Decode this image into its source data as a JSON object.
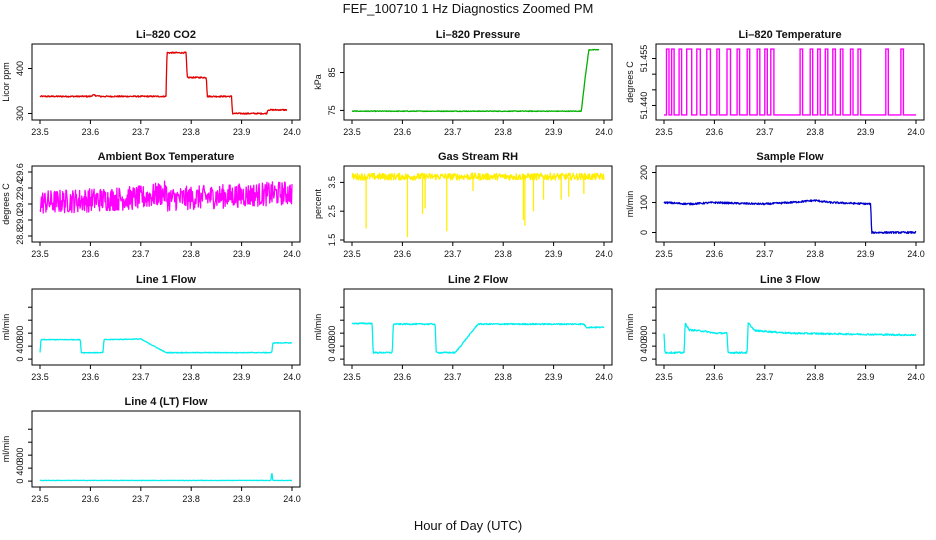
{
  "figure": {
    "title": "FEF_100710  1 Hz Diagnostics Zoomed PM",
    "xlabel": "Hour of Day (UTC)"
  },
  "chart_data": [
    {
      "type": "line",
      "title": "Li–820 CO2",
      "ylabel": "Licor ppm",
      "color": "#e00000",
      "xlim": [
        23.5,
        24.0
      ],
      "xticks": [
        "23.5",
        "23.6",
        "23.7",
        "23.8",
        "23.9",
        "24.0"
      ],
      "ylim": [
        290,
        450
      ],
      "yticks": [
        300,
        400
      ],
      "ytick_labels": [
        "300",
        "400"
      ],
      "noise": 1.5,
      "x": [
        23.5,
        23.6,
        23.605,
        23.62,
        23.75,
        23.752,
        23.79,
        23.792,
        23.83,
        23.832,
        23.88,
        23.882,
        23.95,
        23.952,
        23.99
      ],
      "y": [
        338,
        338,
        341,
        338,
        338,
        435,
        435,
        380,
        380,
        338,
        338,
        300,
        300,
        308,
        308
      ]
    },
    {
      "type": "line",
      "title": "Li–820 Pressure",
      "ylabel": "kPa",
      "color": "#00b000",
      "xlim": [
        23.5,
        24.0
      ],
      "xticks": [
        "23.5",
        "23.6",
        "23.7",
        "23.8",
        "23.9",
        "24.0"
      ],
      "ylim": [
        73,
        92
      ],
      "yticks": [
        75,
        85
      ],
      "ytick_labels": [
        "75",
        "85"
      ],
      "noise": 0.1,
      "x": [
        23.5,
        23.94,
        23.955,
        23.962,
        23.97,
        23.99
      ],
      "y": [
        74.8,
        74.8,
        74.8,
        83,
        91,
        91
      ]
    },
    {
      "type": "line",
      "title": "Li–820 Temperature",
      "ylabel": "degrees C",
      "color": "#ff00ff",
      "xlim": [
        23.5,
        24.0
      ],
      "xticks": [
        "23.5",
        "23.6",
        "23.7",
        "23.8",
        "23.9",
        "24.0"
      ],
      "ylim": [
        51.436,
        51.459
      ],
      "yticks": [
        51.44,
        51.445,
        51.45,
        51.455
      ],
      "ytick_labels": [
        "51.440",
        "",
        "",
        "51.455"
      ],
      "style": "toggle",
      "low": 51.437,
      "high": 51.458,
      "x": [
        23.505,
        23.51,
        23.515,
        23.52,
        23.53,
        23.535,
        23.545,
        23.555,
        23.565,
        23.572,
        23.585,
        23.592,
        23.605,
        23.61,
        23.625,
        23.632,
        23.645,
        23.65,
        23.665,
        23.67,
        23.685,
        23.69,
        23.7,
        23.705,
        23.712,
        23.718,
        23.77,
        23.775,
        23.79,
        23.795,
        23.805,
        23.81,
        23.82,
        23.825,
        23.835,
        23.84,
        23.85,
        23.855,
        23.87,
        23.875,
        23.885,
        23.89,
        23.94,
        23.945,
        23.97,
        23.975
      ],
      "y": [
        1,
        0,
        1,
        0,
        1,
        0,
        1,
        0,
        1,
        0,
        1,
        0,
        1,
        0,
        1,
        0,
        1,
        0,
        1,
        0,
        1,
        0,
        1,
        0,
        1,
        0,
        1,
        0,
        1,
        0,
        1,
        0,
        1,
        0,
        1,
        0,
        1,
        0,
        1,
        0,
        1,
        0,
        1,
        0,
        1,
        0
      ]
    },
    {
      "type": "line",
      "title": "Ambient Box Temperature",
      "ylabel": "degrees C",
      "color": "#ff00ff",
      "xlim": [
        23.5,
        24.0
      ],
      "xticks": [
        "23.5",
        "23.6",
        "23.7",
        "23.8",
        "23.9",
        "24.0"
      ],
      "ylim": [
        28.75,
        29.65
      ],
      "yticks": [
        28.8,
        29.0,
        29.2,
        29.4,
        29.6
      ],
      "ytick_labels": [
        "28.8",
        "29.0",
        "29.2",
        "29.4",
        "29.6"
      ],
      "noise": 0.15,
      "x": [
        23.5,
        23.705,
        23.75,
        23.752,
        24.0
      ],
      "y": [
        29.22,
        29.28,
        29.34,
        29.26,
        29.34
      ]
    },
    {
      "type": "line",
      "title": "Gas Stream RH",
      "ylabel": "percent",
      "color": "#ffee00",
      "xlim": [
        23.5,
        24.0
      ],
      "xticks": [
        "23.5",
        "23.6",
        "23.7",
        "23.8",
        "23.9",
        "24.0"
      ],
      "ylim": [
        1.5,
        4.0
      ],
      "yticks": [
        1.5,
        2.5,
        3.5
      ],
      "ytick_labels": [
        "1.5",
        "2.5",
        "3.5"
      ],
      "noise": 0.12,
      "x": [
        23.5,
        23.72,
        23.75,
        24.0
      ],
      "y": [
        3.7,
        3.7,
        3.7,
        3.7
      ],
      "dips": [
        [
          23.528,
          1.9
        ],
        [
          23.61,
          1.6
        ],
        [
          23.64,
          2.4
        ],
        [
          23.645,
          2.6
        ],
        [
          23.688,
          1.8
        ],
        [
          23.74,
          3.2
        ],
        [
          23.84,
          2.2
        ],
        [
          23.843,
          2.0
        ],
        [
          23.86,
          2.5
        ],
        [
          23.88,
          2.9
        ],
        [
          23.915,
          2.9
        ],
        [
          23.93,
          3.0
        ],
        [
          23.96,
          3.1
        ]
      ]
    },
    {
      "type": "line",
      "title": "Sample Flow",
      "ylabel": "ml/min",
      "color": "#0000cc",
      "xlim": [
        23.5,
        24.0
      ],
      "xticks": [
        "23.5",
        "23.6",
        "23.7",
        "23.8",
        "23.9",
        "24.0"
      ],
      "ylim": [
        -25,
        215
      ],
      "yticks": [
        0,
        100,
        200
      ],
      "ytick_labels": [
        "0",
        "100",
        "200"
      ],
      "noise": 3,
      "x": [
        23.5,
        23.55,
        23.6,
        23.65,
        23.7,
        23.75,
        23.8,
        23.83,
        23.91,
        23.912,
        23.92,
        24.0
      ],
      "y": [
        100,
        95,
        100,
        97,
        95,
        100,
        107,
        100,
        95,
        0,
        0,
        0
      ]
    },
    {
      "type": "line",
      "title": "Line 1 Flow",
      "ylabel": "ml/min",
      "color": "#00eeee",
      "xlim": [
        23.5,
        24.0
      ],
      "xticks": [
        "23.5",
        "23.6",
        "23.7",
        "23.8",
        "23.9",
        "24.0"
      ],
      "ylim": [
        -60,
        1050
      ],
      "yticks": [
        0,
        200,
        400,
        600,
        800
      ],
      "ytick_labels": [
        "0",
        "400",
        "800"
      ],
      "noise": 6,
      "x": [
        23.5,
        23.502,
        23.58,
        23.582,
        23.625,
        23.627,
        23.7,
        23.75,
        23.96,
        23.962,
        24.0
      ],
      "y": [
        100,
        300,
        300,
        100,
        100,
        300,
        310,
        100,
        100,
        250,
        250
      ]
    },
    {
      "type": "line",
      "title": "Line 2 Flow",
      "ylabel": "ml/min",
      "color": "#00eeee",
      "xlim": [
        23.5,
        24.0
      ],
      "xticks": [
        "23.5",
        "23.6",
        "23.7",
        "23.8",
        "23.9",
        "24.0"
      ],
      "ylim": [
        -60,
        1050
      ],
      "yticks": [
        0,
        200,
        400,
        600,
        800
      ],
      "ytick_labels": [
        "0",
        "400",
        "800"
      ],
      "noise": 10,
      "x": [
        23.5,
        23.54,
        23.542,
        23.58,
        23.582,
        23.665,
        23.667,
        23.705,
        23.75,
        23.96,
        23.965,
        24.0
      ],
      "y": [
        550,
        550,
        100,
        100,
        540,
        540,
        100,
        100,
        540,
        540,
        490,
        490
      ]
    },
    {
      "type": "line",
      "title": "Line 3 Flow",
      "ylabel": "ml/min",
      "color": "#00eeee",
      "xlim": [
        23.5,
        24.0
      ],
      "xticks": [
        "23.5",
        "23.6",
        "23.7",
        "23.8",
        "23.9",
        "24.0"
      ],
      "ylim": [
        -60,
        1050
      ],
      "yticks": [
        0,
        200,
        400,
        600,
        800
      ],
      "ytick_labels": [
        "0",
        "400",
        "800"
      ],
      "noise": 12,
      "x": [
        23.5,
        23.502,
        23.505,
        23.54,
        23.542,
        23.55,
        23.58,
        23.6,
        23.625,
        23.627,
        23.665,
        23.667,
        23.68,
        23.75,
        24.0
      ],
      "y": [
        400,
        100,
        100,
        100,
        560,
        450,
        430,
        400,
        400,
        100,
        100,
        560,
        440,
        400,
        370
      ]
    },
    {
      "type": "line",
      "title": "Line 4 (LT) Flow",
      "ylabel": "ml/min",
      "color": "#00eeee",
      "xlim": [
        23.5,
        24.0
      ],
      "xticks": [
        "23.5",
        "23.6",
        "23.7",
        "23.8",
        "23.9",
        "24.0"
      ],
      "ylim": [
        -60,
        1050
      ],
      "yticks": [
        0,
        200,
        400,
        600,
        800
      ],
      "ytick_labels": [
        "0",
        "400",
        "800"
      ],
      "noise": 3,
      "x": [
        23.5,
        23.958,
        23.96,
        23.962,
        24.0
      ],
      "y": [
        10,
        10,
        130,
        10,
        10
      ]
    }
  ]
}
